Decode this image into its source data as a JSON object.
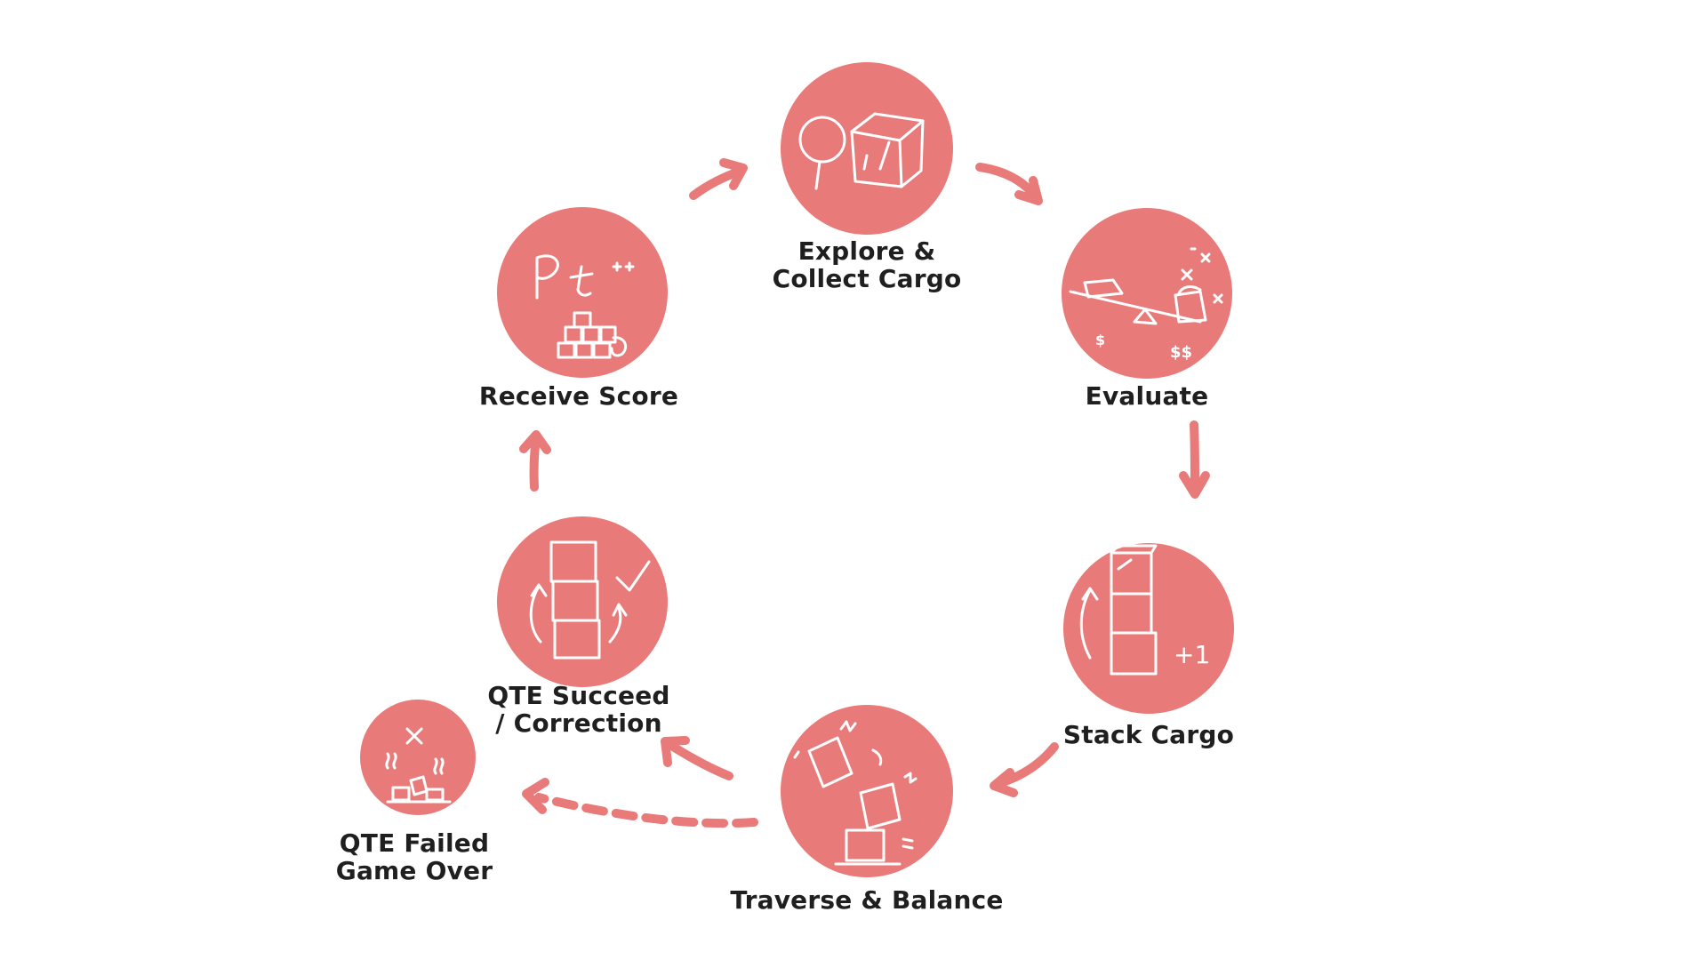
{
  "colors": {
    "node_fill": "#E87B79",
    "arrow": "#E87B79",
    "sketch": "#FFFFFF",
    "text": "#1F1F1F",
    "background": "#FFFFFF"
  },
  "nodes": [
    {
      "id": "explore",
      "lines": [
        "Explore &",
        "Collect Cargo"
      ],
      "icon": "magnifier-box-icon"
    },
    {
      "id": "evaluate",
      "lines": [
        "Evaluate"
      ],
      "icon": "balance-scale-icon"
    },
    {
      "id": "stack",
      "lines": [
        "Stack Cargo"
      ],
      "icon": "stacked-boxes-icon"
    },
    {
      "id": "traverse",
      "lines": [
        "Traverse & Balance"
      ],
      "icon": "tumbling-boxes-icon"
    },
    {
      "id": "qte_succeed",
      "lines": [
        "QTE Succeed",
        "/ Correction"
      ],
      "icon": "stack-checkmark-icon"
    },
    {
      "id": "receive_score",
      "lines": [
        "Receive Score"
      ],
      "icon": "points-icon"
    },
    {
      "id": "qte_failed",
      "lines": [
        "QTE Failed",
        "Game Over"
      ],
      "icon": "collapsed-boxes-icon"
    }
  ],
  "edges": [
    {
      "from": "explore",
      "to": "evaluate",
      "style": "solid"
    },
    {
      "from": "evaluate",
      "to": "stack",
      "style": "solid"
    },
    {
      "from": "stack",
      "to": "traverse",
      "style": "solid"
    },
    {
      "from": "traverse",
      "to": "qte_succeed",
      "style": "solid"
    },
    {
      "from": "traverse",
      "to": "qte_failed",
      "style": "dashed"
    },
    {
      "from": "qte_succeed",
      "to": "receive_score",
      "style": "solid"
    },
    {
      "from": "receive_score",
      "to": "explore",
      "style": "solid"
    }
  ]
}
